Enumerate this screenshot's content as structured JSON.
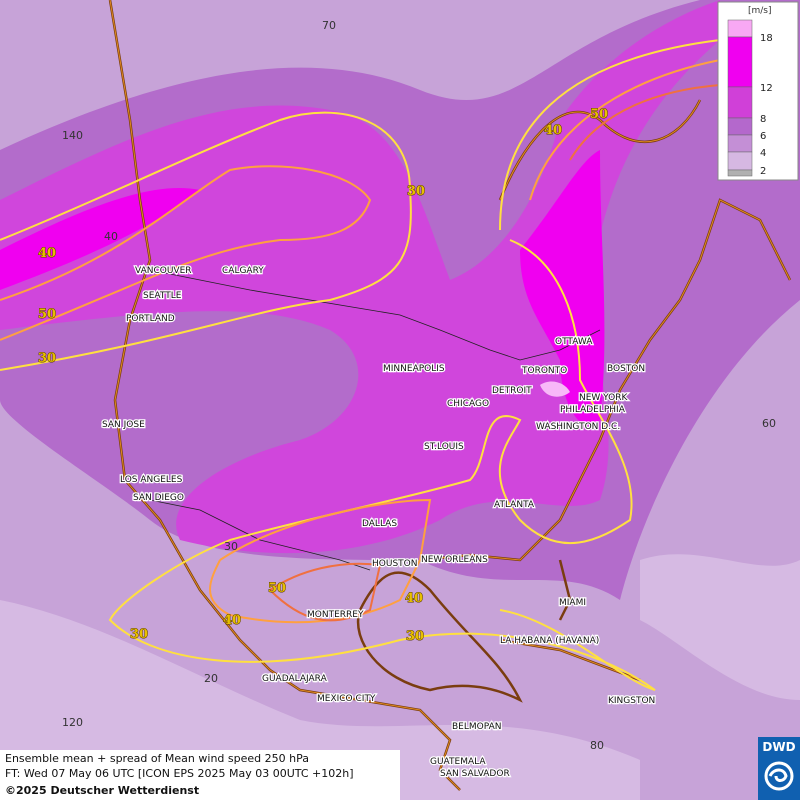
{
  "map": {
    "cities": [
      "VANCOUVER",
      "CALGARY",
      "SEATTLE",
      "PORTLAND",
      "SAN JOSE",
      "LOS ANGELES",
      "SAN DIEGO",
      "MINNEAPOLIS",
      "CHICAGO",
      "DETROIT",
      "TORONTO",
      "OTTAWA",
      "BOSTON",
      "NEW YORK",
      "PHILADELPHIA",
      "WASHINGTON D.C.",
      "ST.LOUIS",
      "ATLANTA",
      "DALLAS",
      "HOUSTON",
      "NEW ORLEANS",
      "MIAMI",
      "MONTERREY",
      "LA HABANA (HAVANA)",
      "GUADALAJARA",
      "MEXICO CITY",
      "KINGSTON",
      "BELMOPAN",
      "GUATEMALA",
      "SAN SALVADOR"
    ],
    "contour_labels": [
      40,
      50,
      30,
      30,
      40,
      50,
      50,
      40,
      30,
      40,
      30
    ],
    "grid_labels": [
      70,
      140,
      40,
      60,
      30,
      20,
      120,
      80
    ]
  },
  "legend": {
    "unit": "[m/s]",
    "levels": [
      18,
      12,
      8,
      6,
      4,
      2
    ],
    "colors": [
      "#f000f0",
      "#d040d8",
      "#b468cc",
      "#c48fd6",
      "#d6b8e2",
      "#b0b0b0"
    ],
    "top_color": "#f8a8f4"
  },
  "footer": {
    "line1": "Ensemble mean + spread of Mean wind speed 250 hPa",
    "line2": "FT: Wed 07 May 06 UTC [ICON EPS 2025 May 03 00UTC +102h]",
    "line3": "©2025 Deutscher Wetterdienst"
  },
  "logo": "DWD"
}
